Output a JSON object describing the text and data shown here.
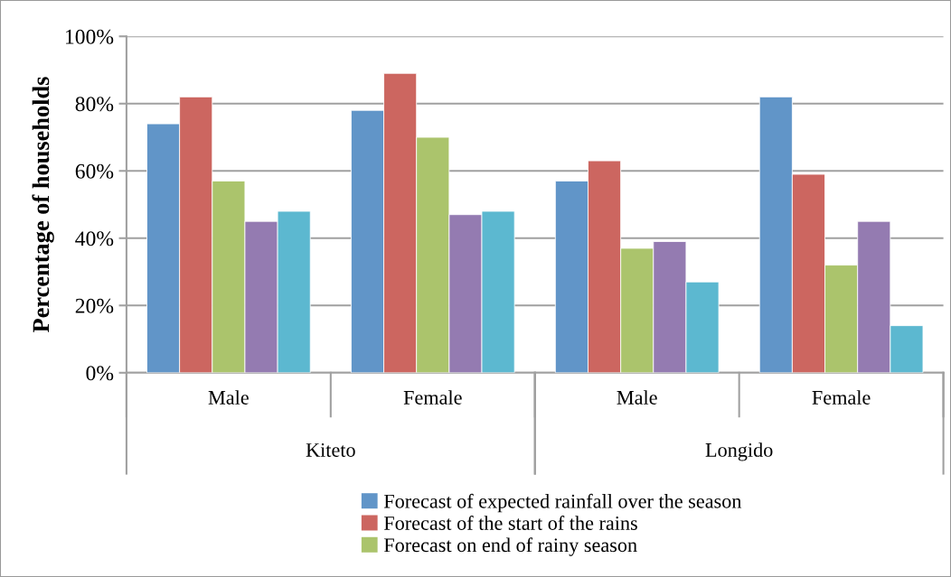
{
  "chart_data": {
    "type": "bar",
    "ylabel": "Percentage of households",
    "categories": [
      "Male",
      "Female",
      "Male",
      "Female"
    ],
    "annotations": [
      "Kiteto",
      "Longido"
    ],
    "series": [
      {
        "name": "Forecast of expected rainfall over the season",
        "color": "#6195c8",
        "values": [
          74,
          78,
          57,
          82
        ]
      },
      {
        "name": "Forecast of the start of the rains",
        "color": "#cc6660",
        "values": [
          82,
          89,
          63,
          59
        ]
      },
      {
        "name": "Forecast on end of rainy season",
        "color": "#abc46c",
        "values": [
          57,
          70,
          37,
          32
        ]
      },
      {
        "color": "#947bb1",
        "values": [
          45,
          47,
          39,
          45
        ]
      },
      {
        "color": "#5cb8d0",
        "values": [
          48,
          48,
          27,
          14
        ]
      }
    ],
    "ylim": [
      0,
      100
    ],
    "yticks": [
      {
        "value": 0,
        "label": "0%"
      },
      {
        "value": 20,
        "label": "20%"
      },
      {
        "value": 40,
        "label": "40%"
      },
      {
        "value": 60,
        "label": "60%"
      },
      {
        "value": 80,
        "label": "80%"
      },
      {
        "value": 100,
        "label": "100%"
      }
    ],
    "grid": "y",
    "legend": "bottom"
  }
}
